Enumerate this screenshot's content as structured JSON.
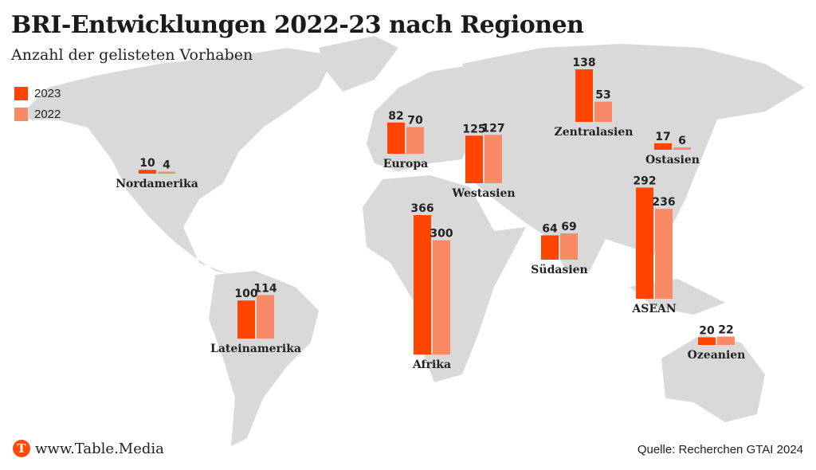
{
  "title": "BRI-Entwicklungen 2022-23 nach Regionen",
  "subtitle": "Anzahl der gelisteten Vorhaben",
  "footer": {
    "logo_letter": "T",
    "site": "www.Table.Media",
    "source": "Quelle: Recherchen GTAI 2024"
  },
  "chart_data": {
    "type": "bar",
    "title": "BRI-Entwicklungen 2022-23 nach Regionen",
    "ylabel": "Anzahl der gelisteten Vorhaben",
    "legend_position": "top-left",
    "series": [
      {
        "name": "2023",
        "color": "#ff4500",
        "values": [
          10,
          100,
          82,
          366,
          125,
          138,
          64,
          17,
          292,
          20
        ]
      },
      {
        "name": "2022",
        "color": "#f98a67",
        "values": [
          4,
          114,
          70,
          300,
          127,
          53,
          69,
          6,
          236,
          22
        ]
      }
    ],
    "categories": [
      "Nordamerika",
      "Lateinamerika",
      "Europa",
      "Afrika",
      "Westasien",
      "Zentralasien",
      "Südasien",
      "Ostasien",
      "ASEAN",
      "Ozeanien"
    ]
  }
}
